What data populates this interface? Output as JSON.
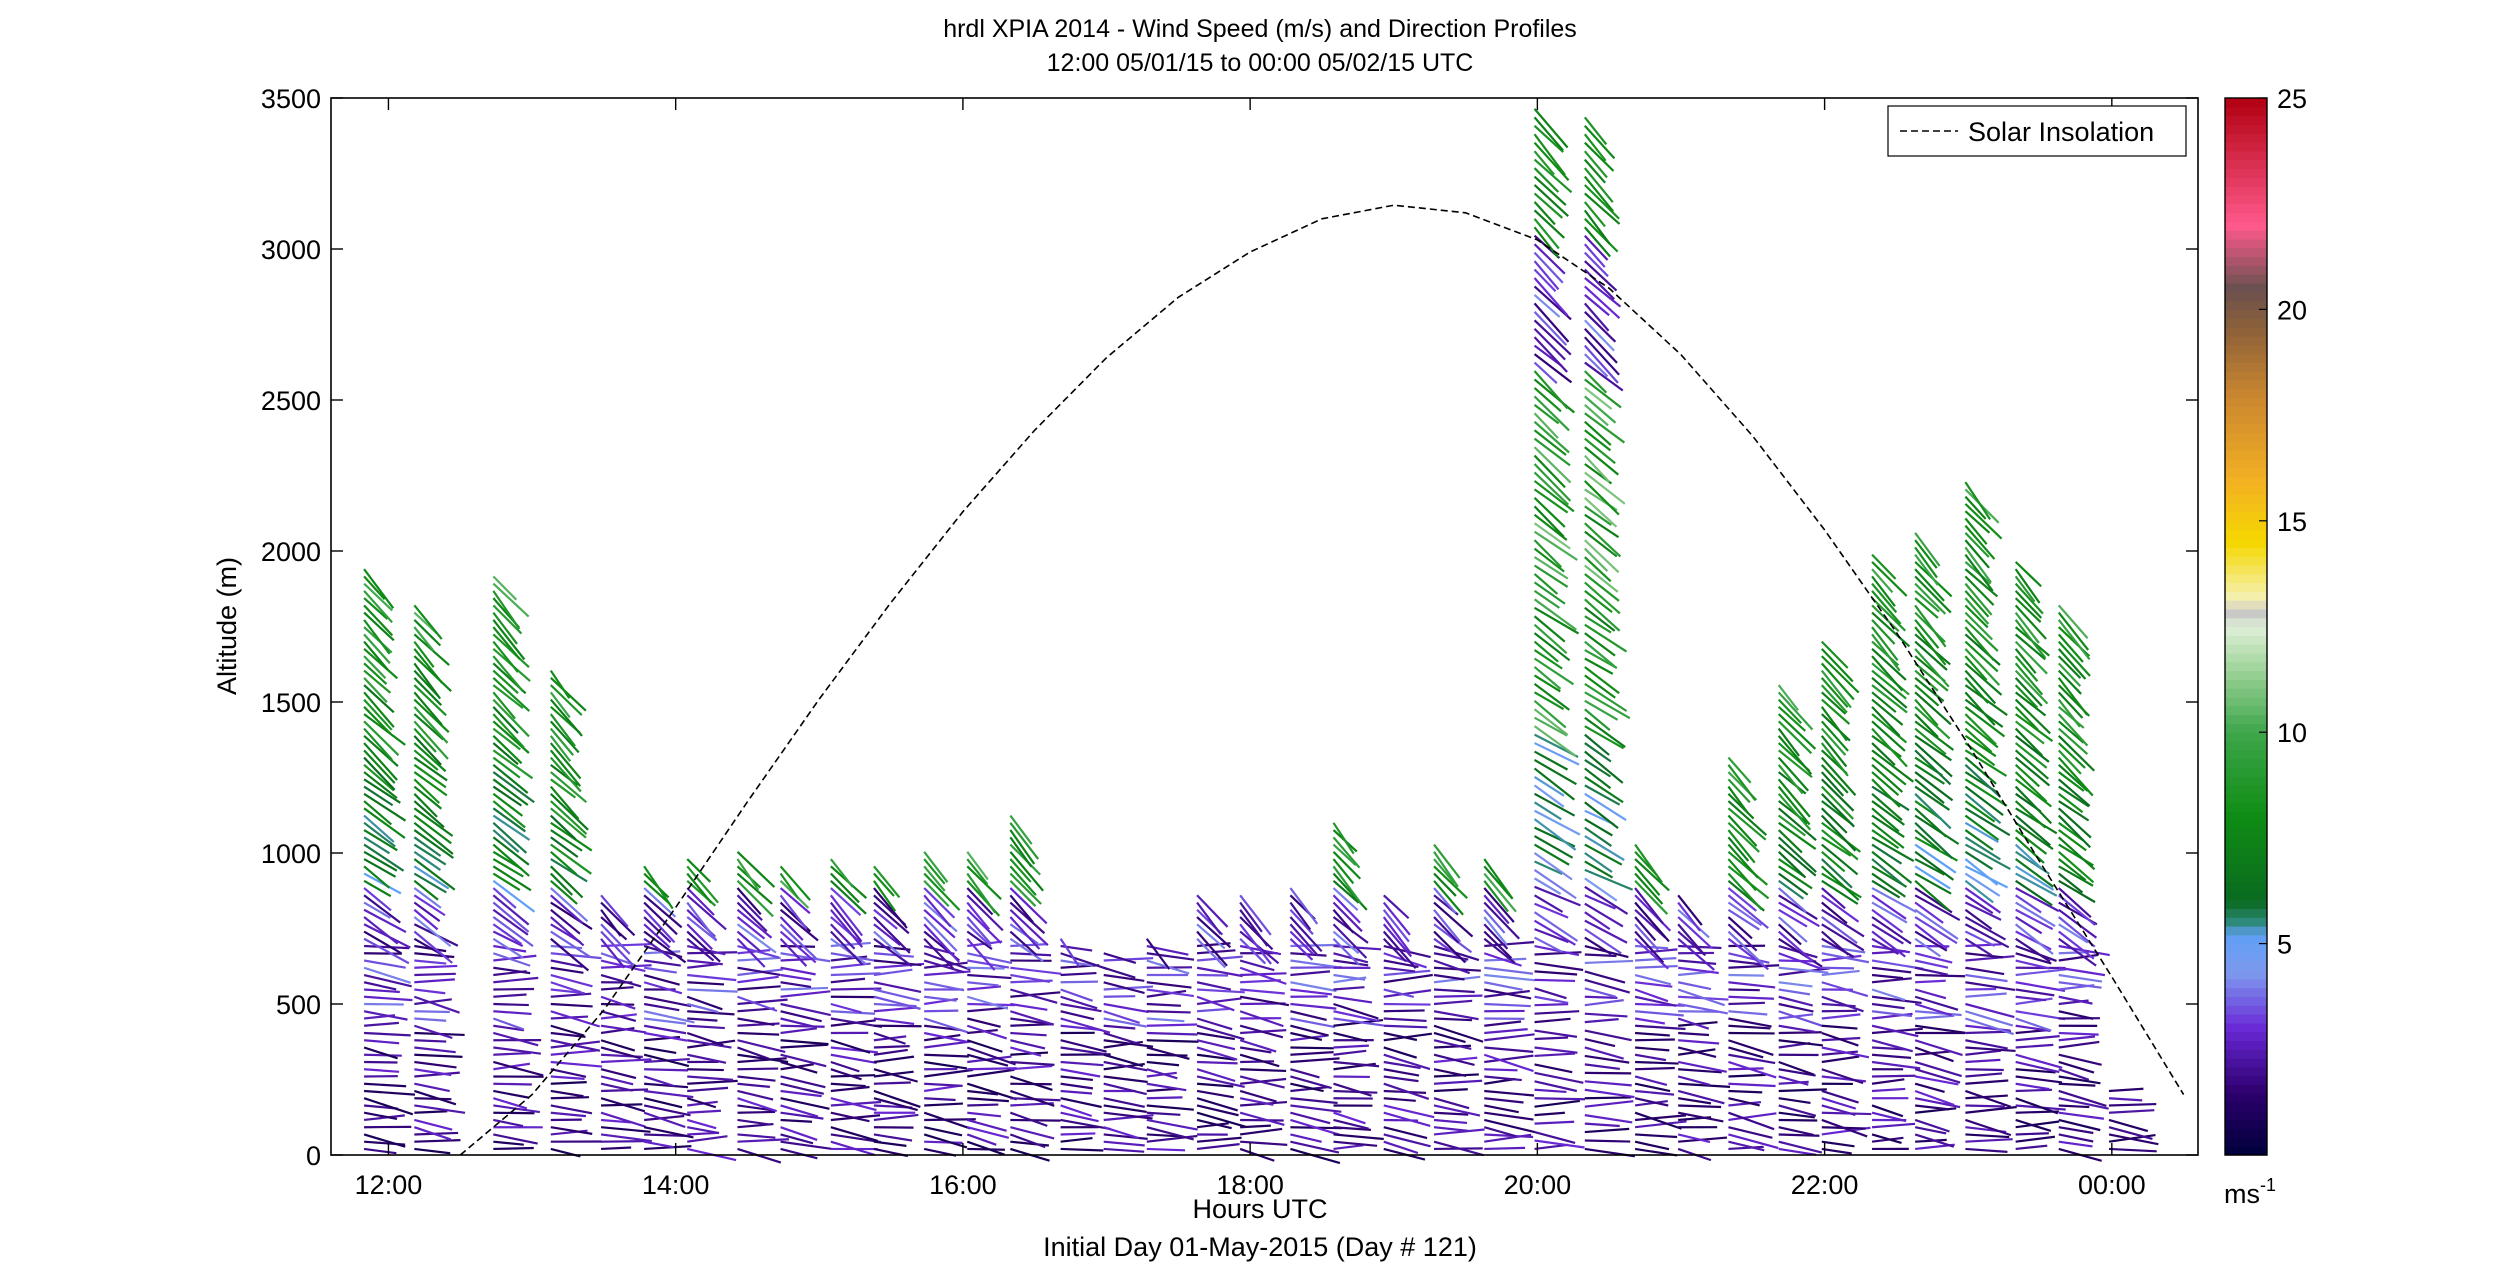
{
  "chart_data": {
    "type": "scatter",
    "title": "hrdl XPIA 2014 - Wind Speed (m/s) and Direction Profiles",
    "subtitle": "12:00 05/01/15 to 00:00 05/02/15  UTC",
    "xlabel": "Hours UTC",
    "xlabel2": "Initial Day 01-May-2015 (Day # 121)",
    "ylabel": "Altitude (m)",
    "xlim": [
      11.6,
      24.6
    ],
    "ylim": [
      0,
      3500
    ],
    "xticks": [
      12,
      14,
      16,
      18,
      20,
      22,
      24
    ],
    "xtick_labels": [
      "12:00",
      "14:00",
      "16:00",
      "18:00",
      "20:00",
      "22:00",
      "00:00"
    ],
    "yticks": [
      0,
      500,
      1000,
      1500,
      2000,
      2500,
      3000,
      3500
    ],
    "ytick_labels": [
      "0",
      "500",
      "1000",
      "1500",
      "2000",
      "2500",
      "3000",
      "3500"
    ],
    "grid": false,
    "legend": {
      "position": "top-right",
      "entries": [
        "Solar Insolation"
      ]
    },
    "colorbar": {
      "unit": "ms",
      "unit_exponent": "-1",
      "range": [
        0,
        25
      ],
      "ticks": [
        5,
        10,
        15,
        20,
        25
      ],
      "tick_labels": [
        "5",
        "10",
        "15",
        "20",
        "25"
      ],
      "colormap": [
        [
          0,
          "#00003a"
        ],
        [
          1.5,
          "#2d006e"
        ],
        [
          3,
          "#6a28d6"
        ],
        [
          4.3,
          "#7d99ee"
        ],
        [
          5.2,
          "#5fa0f5"
        ],
        [
          5.5,
          "#2e8a7e"
        ],
        [
          6,
          "#0a6a1f"
        ],
        [
          8,
          "#0f8c14"
        ],
        [
          10,
          "#3da64a"
        ],
        [
          11.5,
          "#9fd39a"
        ],
        [
          12.5,
          "#dff0d8"
        ],
        [
          12.8,
          "#c8c8c8"
        ],
        [
          13.2,
          "#f5f0b0"
        ],
        [
          14.5,
          "#f5d800"
        ],
        [
          16,
          "#f2b024"
        ],
        [
          18,
          "#c9852f"
        ],
        [
          19.5,
          "#8e6239"
        ],
        [
          20.5,
          "#6b5050"
        ],
        [
          22,
          "#ff5a8c"
        ],
        [
          25,
          "#b00010"
        ]
      ]
    },
    "series": [
      {
        "name": "Solar Insolation",
        "line_style": "dashed",
        "color": "#000000",
        "x": [
          12.5,
          13.0,
          13.5,
          14.0,
          14.5,
          15.0,
          15.5,
          16.0,
          16.5,
          17.0,
          17.5,
          18.0,
          18.5,
          19.0,
          19.5,
          20.0,
          20.5,
          21.0,
          21.5,
          22.0,
          22.5,
          23.0,
          23.5,
          24.0,
          24.5
        ],
        "y": [
          0,
          200,
          480,
          820,
          1170,
          1510,
          1830,
          2130,
          2400,
          2640,
          2840,
          2990,
          3100,
          3145,
          3120,
          3030,
          2870,
          2650,
          2380,
          2070,
          1730,
          1360,
          970,
          590,
          200
        ]
      }
    ],
    "barbs": {
      "description": "wind direction sticks colored by speed",
      "profiles": [
        {
          "t": 11.9,
          "top": 1950
        },
        {
          "t": 12.25,
          "top": 1830
        },
        {
          "t": 12.8,
          "top": 1920
        },
        {
          "t": 13.2,
          "top": 1620
        },
        {
          "t": 13.55,
          "top": 880
        },
        {
          "t": 13.85,
          "top": 970
        },
        {
          "t": 14.15,
          "top": 1000
        },
        {
          "t": 14.5,
          "top": 1010
        },
        {
          "t": 14.8,
          "top": 970
        },
        {
          "t": 15.15,
          "top": 1000
        },
        {
          "t": 15.45,
          "top": 960
        },
        {
          "t": 15.8,
          "top": 1010
        },
        {
          "t": 16.1,
          "top": 1010
        },
        {
          "t": 16.4,
          "top": 1130
        },
        {
          "t": 16.75,
          "top": 720
        },
        {
          "t": 17.05,
          "top": 680
        },
        {
          "t": 17.35,
          "top": 720
        },
        {
          "t": 17.7,
          "top": 860
        },
        {
          "t": 18.0,
          "top": 880
        },
        {
          "t": 18.35,
          "top": 900
        },
        {
          "t": 18.65,
          "top": 1100
        },
        {
          "t": 19.0,
          "top": 880
        },
        {
          "t": 19.35,
          "top": 1050
        },
        {
          "t": 19.7,
          "top": 990
        },
        {
          "t": 20.05,
          "top": 3490
        },
        {
          "t": 20.4,
          "top": 3450
        },
        {
          "t": 20.75,
          "top": 1040
        },
        {
          "t": 21.05,
          "top": 880
        },
        {
          "t": 21.4,
          "top": 1320
        },
        {
          "t": 21.75,
          "top": 1570
        },
        {
          "t": 22.05,
          "top": 1700
        },
        {
          "t": 22.4,
          "top": 2000
        },
        {
          "t": 22.7,
          "top": 2060
        },
        {
          "t": 23.05,
          "top": 2230
        },
        {
          "t": 23.4,
          "top": 1970
        },
        {
          "t": 23.7,
          "top": 1830
        },
        {
          "t": 24.05,
          "top": 220
        }
      ]
    }
  }
}
